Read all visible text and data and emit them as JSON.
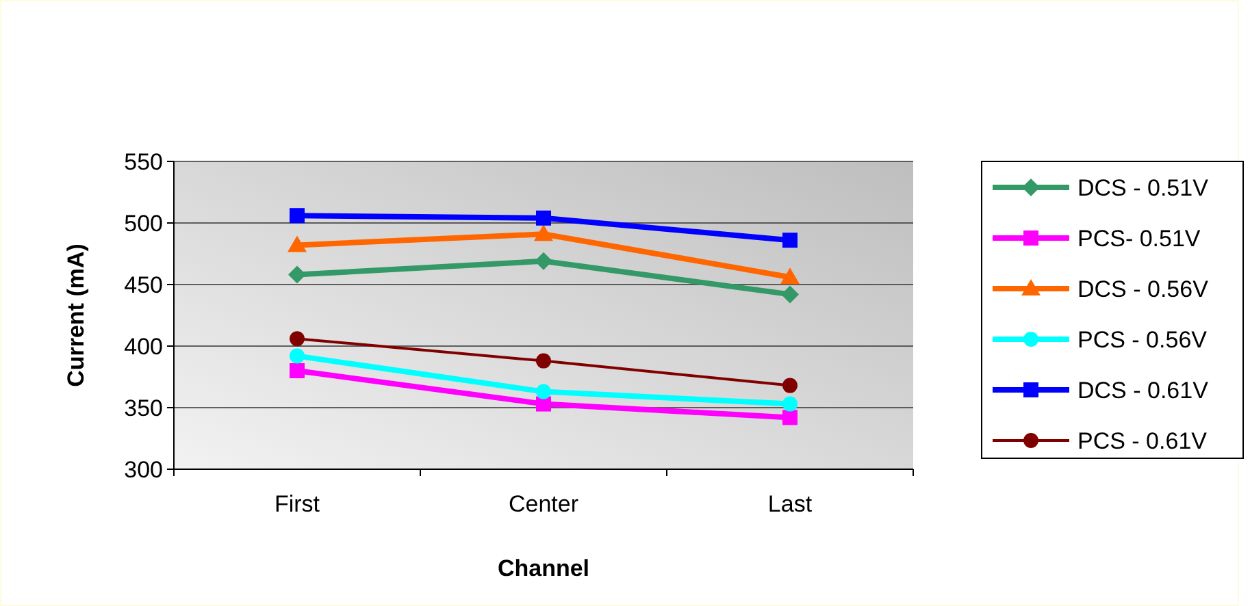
{
  "chart_data": {
    "type": "line",
    "xlabel": "Channel",
    "ylabel": "Current (mA)",
    "categories": [
      "First",
      "Center",
      "Last"
    ],
    "series": [
      {
        "name": "DCS - 0.51V",
        "color": "#339966",
        "marker": "diamond",
        "values": [
          458,
          469,
          442
        ]
      },
      {
        "name": "PCS- 0.51V",
        "color": "#ff00ff",
        "marker": "square",
        "values": [
          380,
          353,
          342
        ]
      },
      {
        "name": "DCS - 0.56V",
        "color": "#ff6600",
        "marker": "triangle",
        "values": [
          482,
          491,
          456
        ]
      },
      {
        "name": "PCS - 0.56V",
        "color": "#00ffff",
        "marker": "circle",
        "values": [
          392,
          363,
          353
        ]
      },
      {
        "name": "DCS - 0.61V",
        "color": "#0000ff",
        "marker": "square",
        "values": [
          506,
          504,
          486
        ]
      },
      {
        "name": "PCS - 0.61V",
        "color": "#800000",
        "marker": "circle",
        "values": [
          406,
          388,
          368
        ]
      }
    ],
    "ylim": [
      300,
      550
    ],
    "yticks": [
      300,
      350,
      400,
      450,
      500,
      550
    ],
    "grid": "y",
    "legend": "right"
  }
}
